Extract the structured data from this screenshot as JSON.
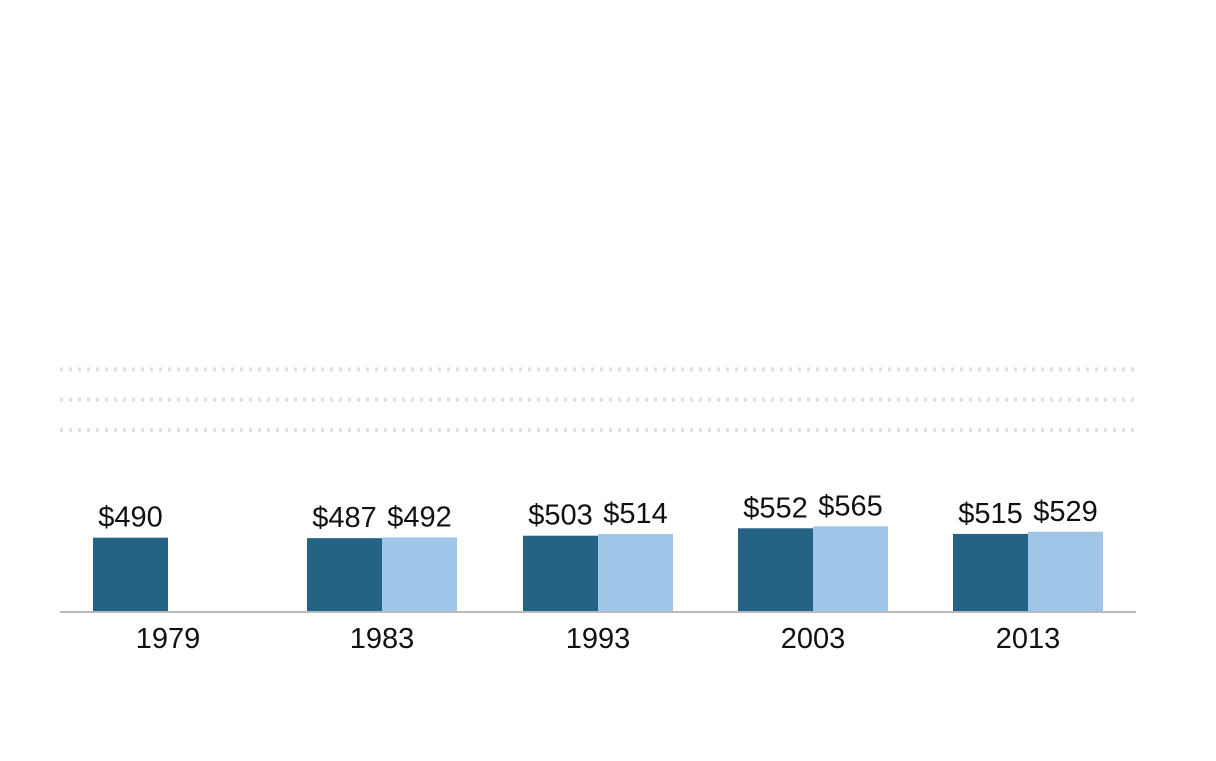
{
  "chart_data": {
    "type": "bar",
    "title": "",
    "xlabel": "",
    "ylabel": "",
    "categories": [
      "1979",
      "1983",
      "1993",
      "2003",
      "2013"
    ],
    "series": [
      {
        "color": "#256384",
        "values": [
          490,
          487,
          503,
          552,
          515
        ],
        "labels": [
          "$490",
          "$487",
          "$503",
          "$552",
          "$515"
        ]
      },
      {
        "color": "#9fc5e8",
        "values": [
          null,
          492,
          514,
          565,
          529
        ],
        "labels": [
          null,
          "$492",
          "$514",
          "$565",
          "$529"
        ]
      }
    ],
    "ylim": [
      0,
      1600
    ],
    "grid": true,
    "gridlines": [
      1200,
      1400,
      1600
    ],
    "legend": "none"
  }
}
